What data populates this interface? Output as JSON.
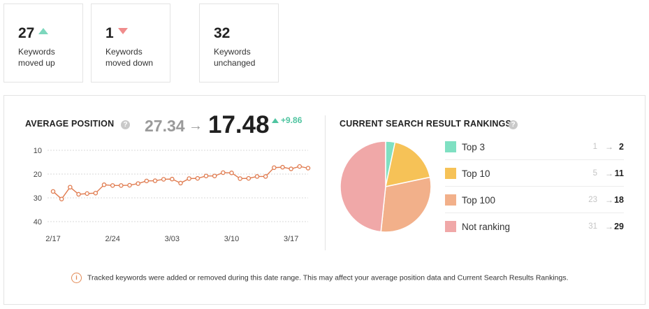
{
  "summary": [
    {
      "value": "27",
      "label": "Keywords moved up",
      "direction": "up"
    },
    {
      "value": "1",
      "label": "Keywords moved down",
      "direction": "down"
    },
    {
      "value": "32",
      "label": "Keywords unchanged",
      "direction": "none"
    }
  ],
  "average_position": {
    "title": "AVERAGE POSITION",
    "help_icon": "question-icon",
    "previous": "27.34",
    "arrow": "→",
    "current": "17.48",
    "change": "+9.86",
    "change_color": "#4fc4a0"
  },
  "rankings": {
    "title": "CURRENT SEARCH RESULT RANKINGS",
    "help_icon": "question-icon",
    "arrow": "→",
    "rows": [
      {
        "name": "Top 3",
        "from": "1",
        "to": "2",
        "color": "#7fe0c2"
      },
      {
        "name": "Top 10",
        "from": "5",
        "to": "11",
        "color": "#f6c257"
      },
      {
        "name": "Top 100",
        "from": "23",
        "to": "18",
        "color": "#f2b08a"
      },
      {
        "name": "Not ranking",
        "from": "31",
        "to": "29",
        "color": "#f0a8a8"
      }
    ]
  },
  "notice": {
    "icon": "info-icon",
    "text": "Tracked keywords were added or removed during this date range. This may affect your average position data and Current Search Results Rankings."
  },
  "chart_data": [
    {
      "type": "line",
      "title": "AVERAGE POSITION",
      "x_tick_labels": [
        "2/17",
        "2/24",
        "3/03",
        "3/10",
        "3/17"
      ],
      "y_ticks": [
        "10",
        "20",
        "30",
        "40"
      ],
      "ylim": [
        10,
        40
      ],
      "y_inverted": true,
      "grid": true,
      "series": [
        {
          "color": "#e07b4f",
          "values": [
            27.3,
            30.5,
            25.5,
            28.5,
            28.2,
            28,
            24.5,
            24.8,
            24.8,
            24.7,
            24,
            22.9,
            22.8,
            22.2,
            22.1,
            23.8,
            21.9,
            21.8,
            20.8,
            20.8,
            19.4,
            19.5,
            21.9,
            21.8,
            21,
            21,
            17.3,
            17.1,
            17.8,
            16.8,
            17.5
          ]
        }
      ]
    },
    {
      "type": "pie",
      "title": "CURRENT SEARCH RESULT RANKINGS",
      "labels": [
        "Top 3",
        "Top 10",
        "Top 100",
        "Not ranking"
      ],
      "values": [
        2,
        11,
        18,
        29
      ],
      "colors": [
        "#7fe0c2",
        "#f6c257",
        "#f2b08a",
        "#f0a8a8"
      ]
    }
  ]
}
